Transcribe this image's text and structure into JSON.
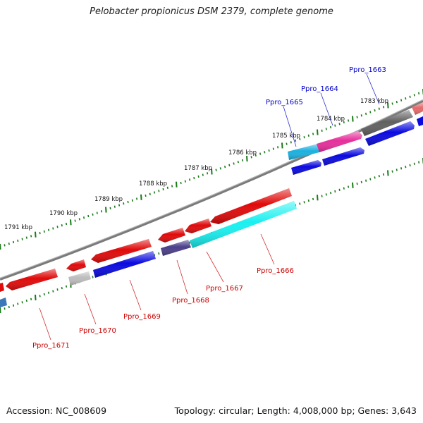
{
  "title": "Pelobacter propionicus DSM 2379, complete genome",
  "footer": {
    "accession": "Accession: NC_008609",
    "summary": "Topology: circular; Length: 4,008,000 bp; Genes: 3,643"
  },
  "colors": {
    "backbone": "#808080",
    "ticks": "#1a7a1a",
    "label_forward": "#0000cc",
    "label_reverse": "#cc0000"
  },
  "kbp_labels": [
    "1791 kbp",
    "1790 kbp",
    "1789 kbp",
    "1788 kbp",
    "1787 kbp",
    "1786 kbp",
    "1785 kbp",
    "1784 kbp",
    "1783 kbp"
  ],
  "gene_labels": {
    "forward": [
      "Ppro_1663",
      "Ppro_1664",
      "Ppro_1665"
    ],
    "reverse": [
      "Ppro_1666",
      "Ppro_1667",
      "Ppro_1668",
      "Ppro_1669",
      "Ppro_1670",
      "Ppro_1671"
    ]
  }
}
